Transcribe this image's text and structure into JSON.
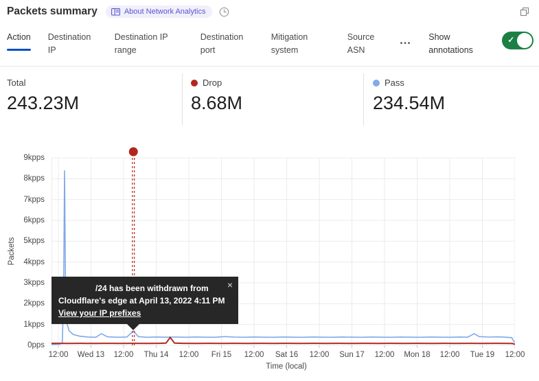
{
  "colors": {
    "accent_blue": "#0051c3",
    "toggle_green": "#1c8045",
    "drop_red": "#b1271e",
    "pass_blue": "#7ea9e9",
    "grid": "#ebebeb",
    "tooltip_bg": "#272727"
  },
  "header": {
    "title": "Packets summary",
    "badge_label": "About Network Analytics"
  },
  "tabs": [
    {
      "label": "Action",
      "active": true
    },
    {
      "label": "Destination IP",
      "active": false
    },
    {
      "label": "Destination IP range",
      "active": false
    },
    {
      "label": "Destination port",
      "active": false
    },
    {
      "label": "Mitigation system",
      "active": false
    },
    {
      "label": "Source ASN",
      "active": false
    }
  ],
  "more_button_label": "•••",
  "show_annotations": {
    "label": "Show annotations",
    "state": "on"
  },
  "summary_stats": [
    {
      "label": "Total",
      "value": "243.23M",
      "dot_color": null
    },
    {
      "label": "Drop",
      "value": "8.68M",
      "dot_color": "#b1271e"
    },
    {
      "label": "Pass",
      "value": "234.54M",
      "dot_color": "#83aae9"
    }
  ],
  "chart_data": {
    "type": "line",
    "xlabel": "Time (local)",
    "ylabel": "Packets",
    "x_ticks": [
      "12:00",
      "Wed 13",
      "12:00",
      "Thu 14",
      "12:00",
      "Fri 15",
      "12:00",
      "Sat 16",
      "12:00",
      "Sun 17",
      "12:00",
      "Mon 18",
      "12:00",
      "Tue 19",
      "12:00"
    ],
    "y_ticks": [
      "0pps",
      "1kpps",
      "2kpps",
      "3kpps",
      "4kpps",
      "5kpps",
      "6kpps",
      "7kpps",
      "8kpps",
      "9kpps"
    ],
    "ylim": [
      0,
      9000
    ],
    "xlim": [
      -0.21,
      14.0
    ],
    "x_unit": "half-day tick index (0 = first 12:00 tick)",
    "grid": true,
    "legend_position": "top",
    "series": [
      {
        "name": "Pass",
        "color": "#7ea9e9",
        "width": 1.6,
        "points": [
          [
            -0.21,
            40
          ],
          [
            0.05,
            55
          ],
          [
            0.12,
            120
          ],
          [
            0.16,
            2200
          ],
          [
            0.19,
            8400
          ],
          [
            0.22,
            2900
          ],
          [
            0.26,
            1050
          ],
          [
            0.33,
            700
          ],
          [
            0.45,
            520
          ],
          [
            0.65,
            440
          ],
          [
            0.9,
            400
          ],
          [
            1.15,
            385
          ],
          [
            1.32,
            560
          ],
          [
            1.5,
            410
          ],
          [
            1.8,
            385
          ],
          [
            2.1,
            400
          ],
          [
            2.3,
            690
          ],
          [
            2.45,
            420
          ],
          [
            2.7,
            385
          ],
          [
            3.0,
            400
          ],
          [
            3.3,
            390
          ],
          [
            3.6,
            400
          ],
          [
            3.9,
            385
          ],
          [
            4.2,
            400
          ],
          [
            4.5,
            390
          ],
          [
            4.8,
            385
          ],
          [
            5.1,
            420
          ],
          [
            5.4,
            395
          ],
          [
            5.7,
            385
          ],
          [
            6.0,
            400
          ],
          [
            6.3,
            390
          ],
          [
            6.6,
            385
          ],
          [
            6.9,
            400
          ],
          [
            7.2,
            390
          ],
          [
            7.5,
            385
          ],
          [
            7.8,
            400
          ],
          [
            8.1,
            390
          ],
          [
            8.4,
            385
          ],
          [
            8.7,
            400
          ],
          [
            9.0,
            390
          ],
          [
            9.3,
            385
          ],
          [
            9.6,
            400
          ],
          [
            9.9,
            390
          ],
          [
            10.2,
            385
          ],
          [
            10.5,
            400
          ],
          [
            10.8,
            390
          ],
          [
            11.1,
            385
          ],
          [
            11.4,
            400
          ],
          [
            11.7,
            390
          ],
          [
            12.0,
            385
          ],
          [
            12.3,
            400
          ],
          [
            12.55,
            390
          ],
          [
            12.75,
            560
          ],
          [
            12.9,
            420
          ],
          [
            13.2,
            395
          ],
          [
            13.5,
            405
          ],
          [
            13.75,
            385
          ],
          [
            13.9,
            370
          ],
          [
            13.97,
            170
          ],
          [
            14.0,
            160
          ]
        ]
      },
      {
        "name": "Drop",
        "color": "#b1271e",
        "width": 2,
        "points": [
          [
            -0.21,
            95
          ],
          [
            0.3,
            90
          ],
          [
            0.7,
            95
          ],
          [
            1.1,
            90
          ],
          [
            1.5,
            95
          ],
          [
            1.9,
            90
          ],
          [
            2.3,
            95
          ],
          [
            2.7,
            90
          ],
          [
            3.1,
            95
          ],
          [
            3.3,
            105
          ],
          [
            3.43,
            380
          ],
          [
            3.56,
            105
          ],
          [
            3.8,
            95
          ],
          [
            4.2,
            90
          ],
          [
            4.6,
            95
          ],
          [
            5.0,
            90
          ],
          [
            5.4,
            95
          ],
          [
            5.8,
            90
          ],
          [
            6.2,
            95
          ],
          [
            6.6,
            90
          ],
          [
            7.0,
            95
          ],
          [
            7.4,
            90
          ],
          [
            7.8,
            95
          ],
          [
            8.2,
            90
          ],
          [
            8.6,
            95
          ],
          [
            9.0,
            90
          ],
          [
            9.4,
            95
          ],
          [
            9.8,
            90
          ],
          [
            10.2,
            95
          ],
          [
            10.6,
            90
          ],
          [
            11.0,
            95
          ],
          [
            11.4,
            90
          ],
          [
            11.8,
            95
          ],
          [
            12.2,
            90
          ],
          [
            12.6,
            95
          ],
          [
            13.0,
            90
          ],
          [
            13.4,
            95
          ],
          [
            13.8,
            90
          ],
          [
            13.93,
            85
          ],
          [
            13.97,
            58
          ],
          [
            14.0,
            58
          ]
        ]
      }
    ],
    "annotation": {
      "x": 2.3,
      "color": "#b1271e",
      "tooltip_lines": [
        "/24 has been withdrawn from",
        "Cloudflare's edge at April 13, 2022 4:11 PM"
      ],
      "tooltip_link": "View your IP prefixes",
      "close_label": "×"
    }
  }
}
